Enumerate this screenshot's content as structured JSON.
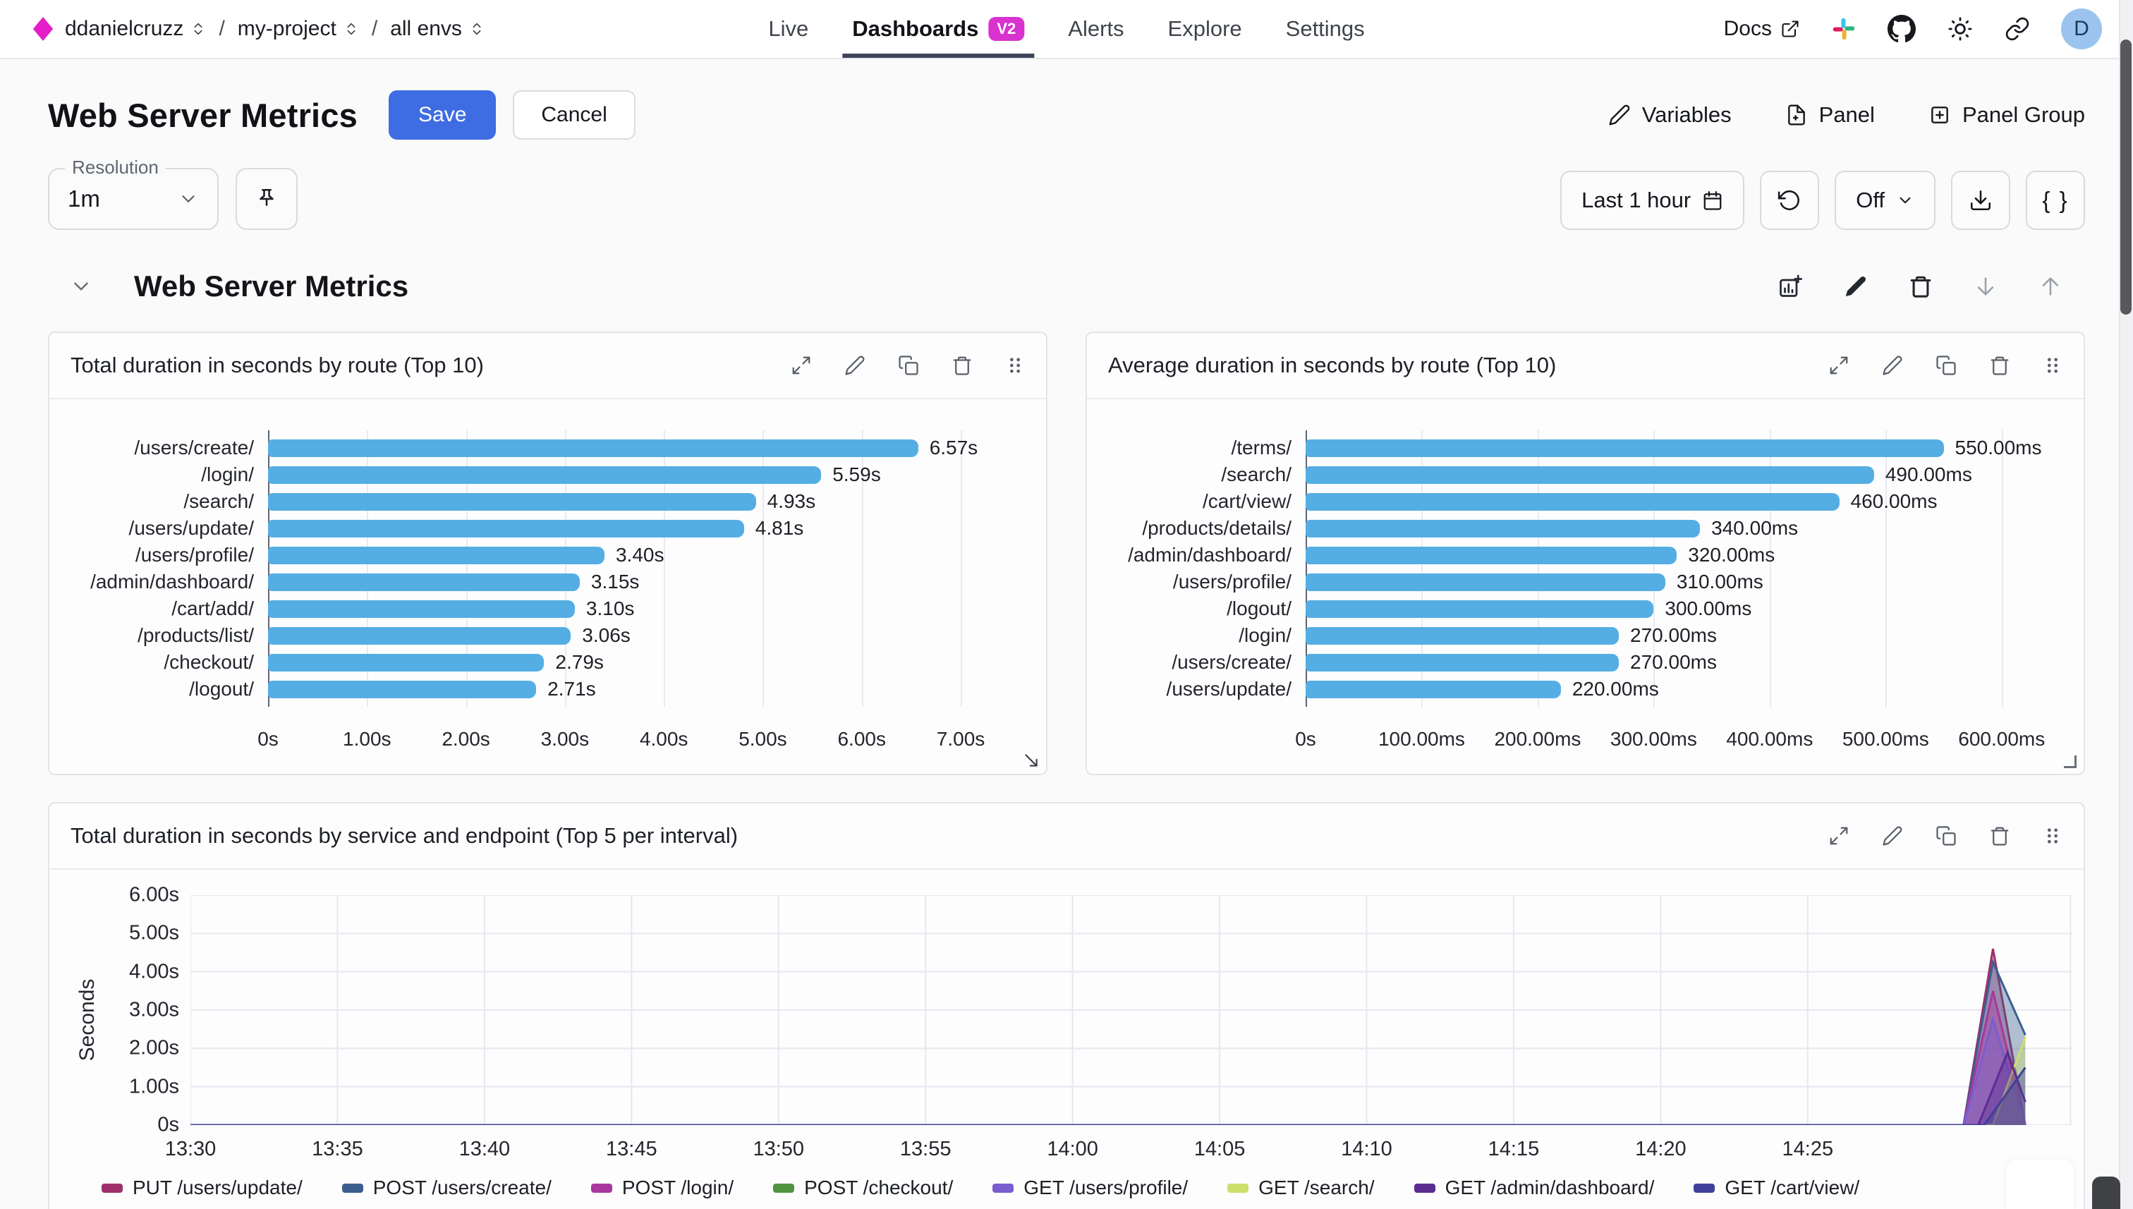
{
  "nav": {
    "breadcrumb": [
      {
        "label": "ddanielcruzz"
      },
      {
        "label": "my-project"
      },
      {
        "label": "all envs"
      }
    ],
    "tabs": [
      {
        "label": "Live"
      },
      {
        "label": "Dashboards",
        "badge": "V2",
        "active": true
      },
      {
        "label": "Alerts"
      },
      {
        "label": "Explore"
      },
      {
        "label": "Settings"
      }
    ],
    "docs_label": "Docs",
    "icons": [
      "external-link-icon",
      "slack-icon",
      "github-icon",
      "sun-icon",
      "link-icon"
    ],
    "avatar_initial": "D"
  },
  "header": {
    "title": "Web Server Metrics",
    "save_label": "Save",
    "cancel_label": "Cancel",
    "variables_label": "Variables",
    "panel_label": "Panel",
    "panel_group_label": "Panel Group"
  },
  "controls": {
    "resolution_label": "Resolution",
    "resolution_value": "1m",
    "time_range": "Last 1 hour",
    "refresh_dropdown_value": "Off",
    "braces_label": "{ }"
  },
  "section": {
    "title": "Web Server Metrics",
    "actions": [
      "add-chart-icon",
      "edit-icon",
      "trash-icon",
      "arrow-down-icon",
      "arrow-up-icon"
    ]
  },
  "panel_action_icons": [
    "expand-icon",
    "edit-icon",
    "duplicate-icon",
    "trash-icon",
    "drag-handle-icon"
  ],
  "colors": {
    "accent_blue": "#3e6ce2",
    "badge_magenta": "#d832cf",
    "logo_magenta": "#e41fc9",
    "bar_blue": "#55aee3",
    "active_tab_underline": "#3e4557"
  },
  "chart_data": [
    {
      "type": "bar",
      "orientation": "horizontal",
      "title": "Total duration in seconds by route (Top 10)",
      "categories": [
        "/users/create/",
        "/login/",
        "/search/",
        "/users/update/",
        "/users/profile/",
        "/admin/dashboard/",
        "/cart/add/",
        "/products/list/",
        "/checkout/",
        "/logout/"
      ],
      "values": [
        6.57,
        5.59,
        4.93,
        4.81,
        3.4,
        3.15,
        3.1,
        3.06,
        2.79,
        2.71
      ],
      "value_labels": [
        "6.57s",
        "5.59s",
        "4.93s",
        "4.81s",
        "3.40s",
        "3.15s",
        "3.10s",
        "3.06s",
        "2.79s",
        "2.71s"
      ],
      "x_ticks": [
        {
          "v": 0,
          "label": "0s"
        },
        {
          "v": 1,
          "label": "1.00s"
        },
        {
          "v": 2,
          "label": "2.00s"
        },
        {
          "v": 3,
          "label": "3.00s"
        },
        {
          "v": 4,
          "label": "4.00s"
        },
        {
          "v": 5,
          "label": "5.00s"
        },
        {
          "v": 6,
          "label": "6.00s"
        },
        {
          "v": 7,
          "label": "7.00s"
        }
      ],
      "xmax": 7.62,
      "bar_color": "#55aee3",
      "grid": true
    },
    {
      "type": "bar",
      "orientation": "horizontal",
      "title": "Average duration in seconds by route (Top 10)",
      "categories": [
        "/terms/",
        "/search/",
        "/cart/view/",
        "/products/details/",
        "/admin/dashboard/",
        "/users/profile/",
        "/logout/",
        "/login/",
        "/users/create/",
        "/users/update/"
      ],
      "values": [
        550,
        490,
        460,
        340,
        320,
        310,
        300,
        270,
        270,
        220
      ],
      "value_labels": [
        "550.00ms",
        "490.00ms",
        "460.00ms",
        "340.00ms",
        "320.00ms",
        "310.00ms",
        "300.00ms",
        "270.00ms",
        "270.00ms",
        "220.00ms"
      ],
      "x_ticks": [
        {
          "v": 0,
          "label": "0s"
        },
        {
          "v": 100,
          "label": "100.00ms"
        },
        {
          "v": 200,
          "label": "200.00ms"
        },
        {
          "v": 300,
          "label": "300.00ms"
        },
        {
          "v": 400,
          "label": "400.00ms"
        },
        {
          "v": 500,
          "label": "500.00ms"
        },
        {
          "v": 600,
          "label": "600.00ms"
        }
      ],
      "xmax": 650,
      "bar_color": "#55aee3",
      "grid": true
    },
    {
      "type": "area",
      "title": "Total duration in seconds by service and endpoint (Top 5 per interval)",
      "ylabel": "Seconds",
      "ymax": 6,
      "y_ticks": [
        {
          "v": 6,
          "label": "6.00s"
        },
        {
          "v": 5,
          "label": "5.00s"
        },
        {
          "v": 4,
          "label": "4.00s"
        },
        {
          "v": 3,
          "label": "3.00s"
        },
        {
          "v": 2,
          "label": "2.00s"
        },
        {
          "v": 1,
          "label": "1.00s"
        },
        {
          "v": 0,
          "label": "0s"
        }
      ],
      "x_domain_minutes": 64,
      "x_ticks": [
        {
          "m": 0,
          "label": "13:30"
        },
        {
          "m": 5,
          "label": "13:35"
        },
        {
          "m": 10,
          "label": "13:40"
        },
        {
          "m": 15,
          "label": "13:45"
        },
        {
          "m": 20,
          "label": "13:50"
        },
        {
          "m": 25,
          "label": "13:55"
        },
        {
          "m": 30,
          "label": "14:00"
        },
        {
          "m": 35,
          "label": "14:05"
        },
        {
          "m": 40,
          "label": "14:10"
        },
        {
          "m": 45,
          "label": "14:15"
        },
        {
          "m": 50,
          "label": "14:20"
        },
        {
          "m": 55,
          "label": "14:25"
        }
      ],
      "grid": true,
      "legend_position": "bottom",
      "series": [
        {
          "name": "PUT /users/update/",
          "color": "#9e2f6b",
          "points": [
            [
              0,
              0
            ],
            [
              60.3,
              0
            ],
            [
              61.3,
              4.6
            ],
            [
              62.4,
              0
            ]
          ]
        },
        {
          "name": "POST /users/create/",
          "color": "#3c5e8f",
          "points": [
            [
              0,
              0
            ],
            [
              60.3,
              0
            ],
            [
              61.3,
              4.25
            ],
            [
              62.4,
              2.35
            ]
          ]
        },
        {
          "name": "POST /login/",
          "color": "#a8389d",
          "points": [
            [
              0,
              0
            ],
            [
              60.3,
              0
            ],
            [
              61.3,
              3.5
            ],
            [
              62.4,
              0
            ]
          ]
        },
        {
          "name": "POST /checkout/",
          "color": "#4f9440",
          "points": [
            [
              0,
              0
            ],
            [
              62.4,
              0
            ]
          ]
        },
        {
          "name": "GET /users/profile/",
          "color": "#7a5cd0",
          "points": [
            [
              0,
              0
            ],
            [
              60.3,
              0
            ],
            [
              61.3,
              2.75
            ],
            [
              62.4,
              0
            ]
          ]
        },
        {
          "name": "GET /search/",
          "color": "#ccdf6b",
          "points": [
            [
              0,
              0
            ],
            [
              61.3,
              0
            ],
            [
              62.4,
              2.3
            ]
          ]
        },
        {
          "name": "GET /admin/dashboard/",
          "color": "#5c2d91",
          "points": [
            [
              0,
              0
            ],
            [
              60.8,
              0
            ],
            [
              61.8,
              1.9
            ],
            [
              62.4,
              0.6
            ]
          ]
        },
        {
          "name": "GET /cart/view/",
          "color": "#40409a",
          "points": [
            [
              0,
              0
            ],
            [
              61.0,
              0
            ],
            [
              62.4,
              1.5
            ]
          ]
        }
      ]
    }
  ]
}
